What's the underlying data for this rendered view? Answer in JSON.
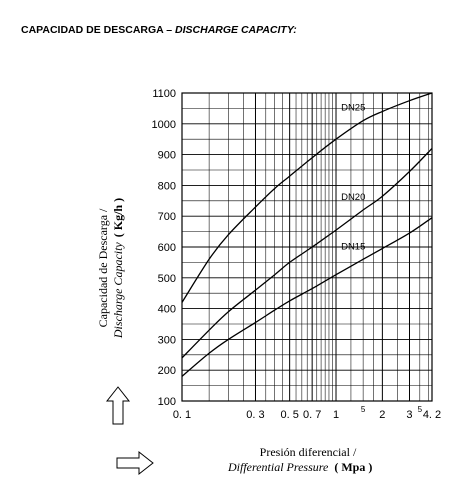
{
  "header": {
    "title_es": "CAPACIDAD DE DESCARGA",
    "separator": "–",
    "title_en": "DISCHARGE CAPACITY:"
  },
  "chart_data": {
    "type": "line",
    "x_scale": "log",
    "xlim": [
      0.1,
      4.2
    ],
    "ylim": [
      100,
      1100
    ],
    "grid": true,
    "y_ticks": [
      "100",
      "200",
      "300",
      "400",
      "500",
      "600",
      "700",
      "800",
      "900",
      "1000",
      "1100"
    ],
    "x_ticks": [
      {
        "value": 0.1,
        "label": "0. 1"
      },
      {
        "value": 0.3,
        "label": "0. 3"
      },
      {
        "value": 0.5,
        "label": "0. 5"
      },
      {
        "value": 0.7,
        "label": "0. 7"
      },
      {
        "value": 1,
        "label": "1"
      },
      {
        "value": 2,
        "label": "2"
      },
      {
        "value": 3,
        "label": "3"
      },
      {
        "value": 4.2,
        "label": "4. 2"
      }
    ],
    "x_minor_labels": [
      {
        "value": 1.5,
        "label": "5"
      },
      {
        "value": 3.5,
        "label": "5"
      }
    ],
    "xlabel_es": "Presión diferencial /",
    "xlabel_en": "Differential Pressure",
    "xlabel_unit": "( Mpa )",
    "ylabel_es": "Capacidad de Descarga /",
    "ylabel_en": "Discharge Capacity",
    "ylabel_unit": "( Kg/h )",
    "series": [
      {
        "name": "DN25",
        "x": [
          0.1,
          0.15,
          0.2,
          0.3,
          0.4,
          0.5,
          0.7,
          1.0,
          1.5,
          2.0,
          3.0,
          4.2
        ],
        "y": [
          420,
          560,
          640,
          730,
          790,
          830,
          890,
          950,
          1010,
          1040,
          1075,
          1100
        ]
      },
      {
        "name": "DN20",
        "x": [
          0.1,
          0.15,
          0.2,
          0.3,
          0.4,
          0.5,
          0.7,
          1.0,
          1.5,
          2.0,
          3.0,
          4.2
        ],
        "y": [
          240,
          330,
          390,
          460,
          510,
          550,
          600,
          655,
          720,
          765,
          845,
          920
        ]
      },
      {
        "name": "DN15",
        "x": [
          0.1,
          0.15,
          0.2,
          0.3,
          0.4,
          0.5,
          0.7,
          1.0,
          1.5,
          2.0,
          3.0,
          4.2
        ],
        "y": [
          180,
          255,
          300,
          355,
          395,
          425,
          465,
          510,
          560,
          595,
          645,
          695
        ]
      }
    ]
  }
}
